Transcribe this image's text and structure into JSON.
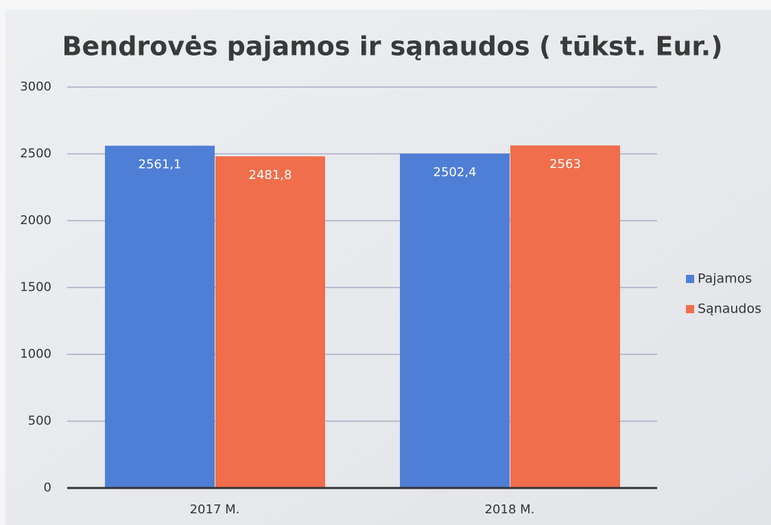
{
  "chart_data": {
    "type": "bar",
    "title": "Bendrovės pajamos ir sąnaudos ( tūkst. Eur.)",
    "categories": [
      "2017 M.",
      "2018 M."
    ],
    "series": [
      {
        "name": "Pajamos",
        "color": "#4f7ed6",
        "values": [
          2561.1,
          2502.4
        ],
        "value_labels": [
          "2561,1",
          "2502,4"
        ]
      },
      {
        "name": "Sąnaudos",
        "color": "#f06e4c",
        "values": [
          2481.8,
          2563
        ],
        "value_labels": [
          "2481,8",
          "2563"
        ]
      }
    ],
    "ylim": [
      0,
      3000
    ],
    "yticks": [
      0,
      500,
      1000,
      1500,
      2000,
      2500,
      3000
    ],
    "grid": true,
    "legend": "right"
  }
}
